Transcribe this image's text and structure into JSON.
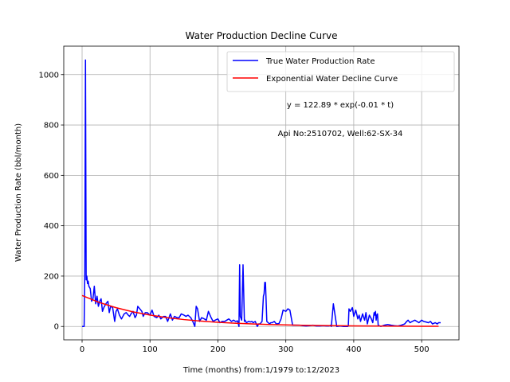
{
  "chart_data": {
    "type": "line",
    "title": "Water Production Decline Curve",
    "xlabel": "Time (months) from:1/1979 to:12/2023",
    "ylabel": "Water Production Rate (bbl/month)",
    "xlim": [
      -27,
      555
    ],
    "ylim": [
      -53,
      1113
    ],
    "xticks": [
      0,
      100,
      200,
      300,
      400,
      500
    ],
    "yticks": [
      0,
      200,
      400,
      600,
      800,
      1000
    ],
    "grid": true,
    "legend_position": "top-right",
    "annotations": [
      "y = 122.89 * exp(-0.01 * t)",
      "Api No:2510702, Well:62-SX-34"
    ],
    "series": [
      {
        "name": "True Water Production Rate",
        "color": "#0000ff",
        "x": [
          0,
          3,
          4,
          5,
          6,
          7,
          8,
          9,
          10,
          12,
          14,
          16,
          18,
          20,
          22,
          24,
          26,
          28,
          30,
          32,
          35,
          38,
          40,
          42,
          45,
          48,
          50,
          52,
          55,
          58,
          60,
          62,
          65,
          68,
          70,
          72,
          75,
          78,
          80,
          82,
          85,
          88,
          90,
          93,
          96,
          100,
          103,
          106,
          110,
          113,
          116,
          120,
          123,
          126,
          130,
          133,
          136,
          140,
          143,
          146,
          150,
          153,
          156,
          160,
          163,
          166,
          168,
          170,
          173,
          176,
          180,
          183,
          186,
          190,
          193,
          196,
          200,
          203,
          206,
          210,
          213,
          216,
          220,
          223,
          226,
          229,
          231,
          232,
          233,
          235,
          237,
          239,
          240,
          242,
          245,
          248,
          250,
          252,
          255,
          258,
          260,
          262,
          265,
          267,
          268,
          269,
          270,
          271,
          272,
          274,
          276,
          278,
          280,
          283,
          286,
          290,
          293,
          296,
          300,
          303,
          306,
          310,
          315,
          320,
          325,
          330,
          335,
          340,
          345,
          350,
          355,
          360,
          363,
          365,
          366,
          367,
          370,
          375,
          380,
          385,
          388,
          390,
          391,
          392,
          393,
          395,
          398,
          400,
          403,
          406,
          408,
          410,
          413,
          416,
          418,
          420,
          423,
          426,
          428,
          430,
          431,
          432,
          433,
          434,
          435,
          436,
          440,
          445,
          450,
          455,
          460,
          465,
          470,
          475,
          478,
          480,
          483,
          486,
          490,
          493,
          496,
          500,
          503,
          506,
          510,
          513,
          516,
          520,
          523,
          525,
          528
        ],
        "y": [
          0,
          0,
          210,
          1058,
          185,
          200,
          170,
          180,
          160,
          150,
          100,
          110,
          160,
          90,
          120,
          80,
          100,
          110,
          60,
          75,
          90,
          100,
          55,
          80,
          75,
          20,
          60,
          70,
          45,
          30,
          40,
          50,
          55,
          45,
          40,
          50,
          60,
          35,
          45,
          80,
          70,
          60,
          40,
          55,
          55,
          45,
          65,
          40,
          35,
          45,
          30,
          40,
          40,
          20,
          50,
          25,
          40,
          35,
          35,
          50,
          45,
          40,
          45,
          35,
          20,
          0,
          80,
          70,
          20,
          35,
          30,
          25,
          60,
          35,
          20,
          25,
          30,
          15,
          20,
          20,
          25,
          30,
          20,
          25,
          20,
          22,
          0,
          245,
          40,
          25,
          245,
          20,
          25,
          15,
          20,
          18,
          20,
          15,
          20,
          0,
          10,
          10,
          20,
          120,
          130,
          175,
          175,
          100,
          20,
          15,
          10,
          15,
          15,
          20,
          10,
          12,
          30,
          65,
          60,
          70,
          65,
          5,
          5,
          5,
          3,
          2,
          3,
          5,
          2,
          2,
          3,
          2,
          2,
          3,
          5,
          0,
          90,
          0,
          2,
          0,
          0,
          0,
          0,
          2,
          70,
          60,
          75,
          40,
          65,
          30,
          45,
          20,
          50,
          25,
          55,
          10,
          45,
          30,
          15,
          55,
          45,
          60,
          25,
          45,
          50,
          5,
          0,
          5,
          8,
          5,
          3,
          2,
          5,
          10,
          20,
          25,
          15,
          20,
          25,
          20,
          15,
          25,
          20,
          18,
          15,
          20,
          10,
          15,
          10,
          15,
          15
        ]
      },
      {
        "name": "Exponential Water Decline Curve",
        "color": "#ff0000",
        "x": [
          0,
          25,
          50,
          75,
          100,
          125,
          150,
          175,
          200,
          225,
          250,
          275,
          300,
          325,
          350,
          375,
          400,
          425,
          450,
          475,
          500,
          525
        ],
        "y": [
          122.9,
          95.7,
          74.5,
          58.1,
          45.2,
          35.2,
          27.4,
          21.4,
          16.6,
          13,
          10.1,
          7.9,
          6.1,
          4.8,
          3.7,
          2.9,
          2.3,
          1.8,
          1.4,
          1.1,
          0.8,
          0.6
        ]
      }
    ]
  }
}
